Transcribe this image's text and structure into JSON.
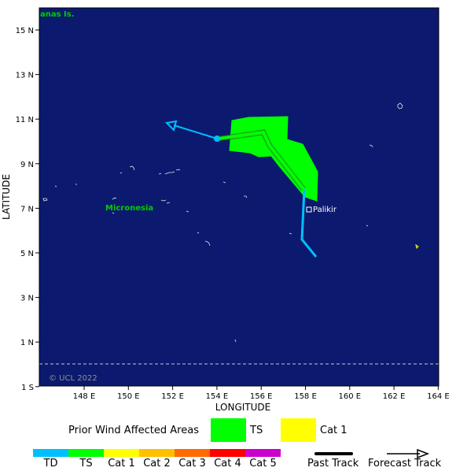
{
  "map": {
    "corner_label": "anas Is.",
    "copyright": "© UCL 2022",
    "region_label": "Micronesia",
    "city_label": "Palikir",
    "xlabel": "LONGITUDE",
    "ylabel": "LATITUDE",
    "lon_ticks": [
      "148 E",
      "150 E",
      "152 E",
      "154 E",
      "156 E",
      "158 E",
      "160 E",
      "162 E",
      "164 E"
    ],
    "lat_ticks": [
      "15 N",
      "13 N",
      "11 N",
      "9 N",
      "7 N",
      "5 N",
      "3 N",
      "1 N",
      "1 S"
    ],
    "colors": {
      "ocean": "#0b1a6e",
      "ts": "#00ff00",
      "cat1": "#ffff00",
      "track": "#00bfff",
      "label_green": "#00cc00",
      "dash": "#c8c8c8"
    }
  },
  "legend": {
    "prior_areas_label": "Prior Wind Affected Areas",
    "ts_label": "TS",
    "cat1_label": "Cat 1",
    "past_track_label": "Past Track",
    "forecast_track_label": "Forecast Track"
  },
  "scale": [
    {
      "label": "TD",
      "color": "#00bfff"
    },
    {
      "label": "TS",
      "color": "#00ff00"
    },
    {
      "label": "Cat 1",
      "color": "#ffff00"
    },
    {
      "label": "Cat 2",
      "color": "#ffc000"
    },
    {
      "label": "Cat 3",
      "color": "#ff6a00"
    },
    {
      "label": "Cat 4",
      "color": "#ff0000"
    },
    {
      "label": "Cat 5",
      "color": "#cc00cc"
    }
  ]
}
